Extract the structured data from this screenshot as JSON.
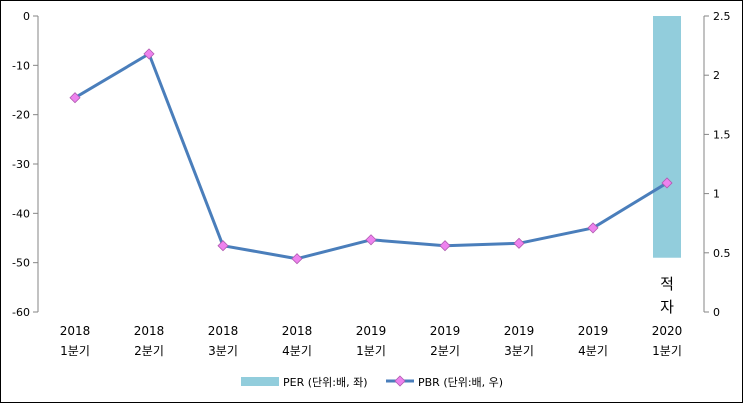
{
  "chart_data": {
    "type": "bar+line",
    "categories": [
      [
        "2018",
        "1분기"
      ],
      [
        "2018",
        "2분기"
      ],
      [
        "2018",
        "3분기"
      ],
      [
        "2018",
        "4분기"
      ],
      [
        "2019",
        "1분기"
      ],
      [
        "2019",
        "2분기"
      ],
      [
        "2019",
        "3분기"
      ],
      [
        "2019",
        "4분기"
      ],
      [
        "2020",
        "1분기"
      ]
    ],
    "y_left": {
      "min": -60,
      "max": 0,
      "ticks": [
        0,
        -10,
        -20,
        -30,
        -40,
        -50,
        -60
      ]
    },
    "y_right": {
      "min": 0,
      "max": 2.5,
      "ticks": [
        "2.5",
        "2",
        "1.5",
        "1",
        "0.5",
        "0"
      ]
    },
    "series": [
      {
        "name": "PER (단위:배, 좌)",
        "type": "bar",
        "axis": "left",
        "color": "#92cddc",
        "values": [
          null,
          null,
          null,
          null,
          null,
          null,
          null,
          null,
          -49
        ]
      },
      {
        "name": "PBR (단위:배, 우)",
        "type": "line",
        "axis": "right",
        "color": "#4a7ebb",
        "marker_color": "#ee82ee",
        "values": [
          1.81,
          2.18,
          0.56,
          0.45,
          0.61,
          0.56,
          0.58,
          0.71,
          1.09
        ]
      }
    ],
    "annotation": {
      "category_index": 8,
      "lines": [
        "적",
        "자"
      ]
    },
    "legend_position": "bottom",
    "grid": false
  }
}
